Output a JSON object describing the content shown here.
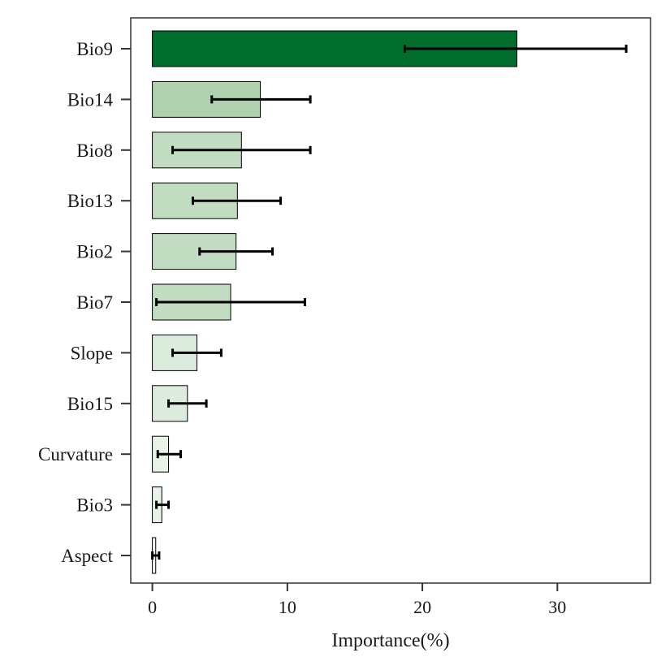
{
  "chart_data": {
    "type": "bar",
    "orientation": "horizontal",
    "title": "",
    "xlabel": "Importance(%)",
    "ylabel": "",
    "xlim": [
      -1.6,
      36.9
    ],
    "xticks": [
      0,
      10,
      20,
      30
    ],
    "grid": false,
    "legend": "none",
    "categories": [
      "Bio9",
      "Bio14",
      "Bio8",
      "Bio13",
      "Bio2",
      "Bio7",
      "Slope",
      "Bio15",
      "Curvature",
      "Bio3",
      "Aspect"
    ],
    "values": [
      27.0,
      8.0,
      6.6,
      6.3,
      6.2,
      5.8,
      3.3,
      2.6,
      1.2,
      0.7,
      0.25
    ],
    "error_low": [
      18.7,
      4.4,
      1.5,
      3.0,
      3.5,
      0.3,
      1.5,
      1.2,
      0.4,
      0.3,
      0.0
    ],
    "error_high": [
      35.1,
      11.7,
      11.7,
      9.5,
      8.9,
      11.3,
      5.1,
      4.0,
      2.1,
      1.2,
      0.5
    ],
    "colors": [
      "#006d2c",
      "#b0d1b0",
      "#c2dcc2",
      "#c2dcc2",
      "#c2dcc2",
      "#c2dcc2",
      "#dcecdc",
      "#dcecdc",
      "#e8f3e8",
      "#e8f3e8",
      "#f2f8f2"
    ]
  }
}
